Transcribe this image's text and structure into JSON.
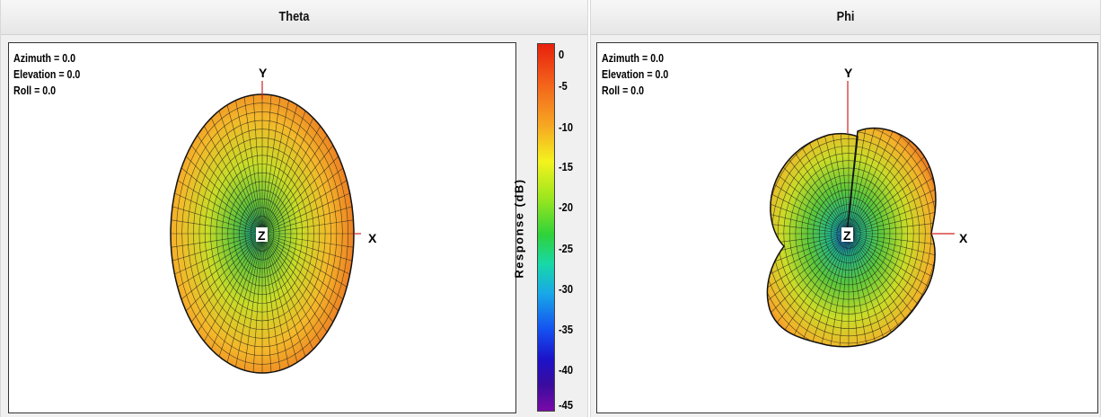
{
  "panels": [
    {
      "title": "Theta",
      "info": {
        "azimuth": "Azimuth = 0.0",
        "elevation": "Elevation = 0.0",
        "roll": "Roll = 0.0"
      }
    },
    {
      "title": "Phi",
      "info": {
        "azimuth": "Azimuth = 0.0",
        "elevation": "Elevation = 0.0",
        "roll": "Roll = 0.0"
      }
    }
  ],
  "axes": {
    "x": "X",
    "y": "Y",
    "z": "Z"
  },
  "colorbar": {
    "label": "Response (dB)",
    "ticks": [
      "0",
      "-5",
      "-10",
      "-15",
      "-20",
      "-25",
      "-30",
      "-35",
      "-40",
      "-45"
    ]
  },
  "colors": {
    "axis_line": "#d02020",
    "mesh": "#1a1a1a",
    "high": "#ee6a1e",
    "mid": "#f2c62a",
    "low": "#34c06a"
  }
}
